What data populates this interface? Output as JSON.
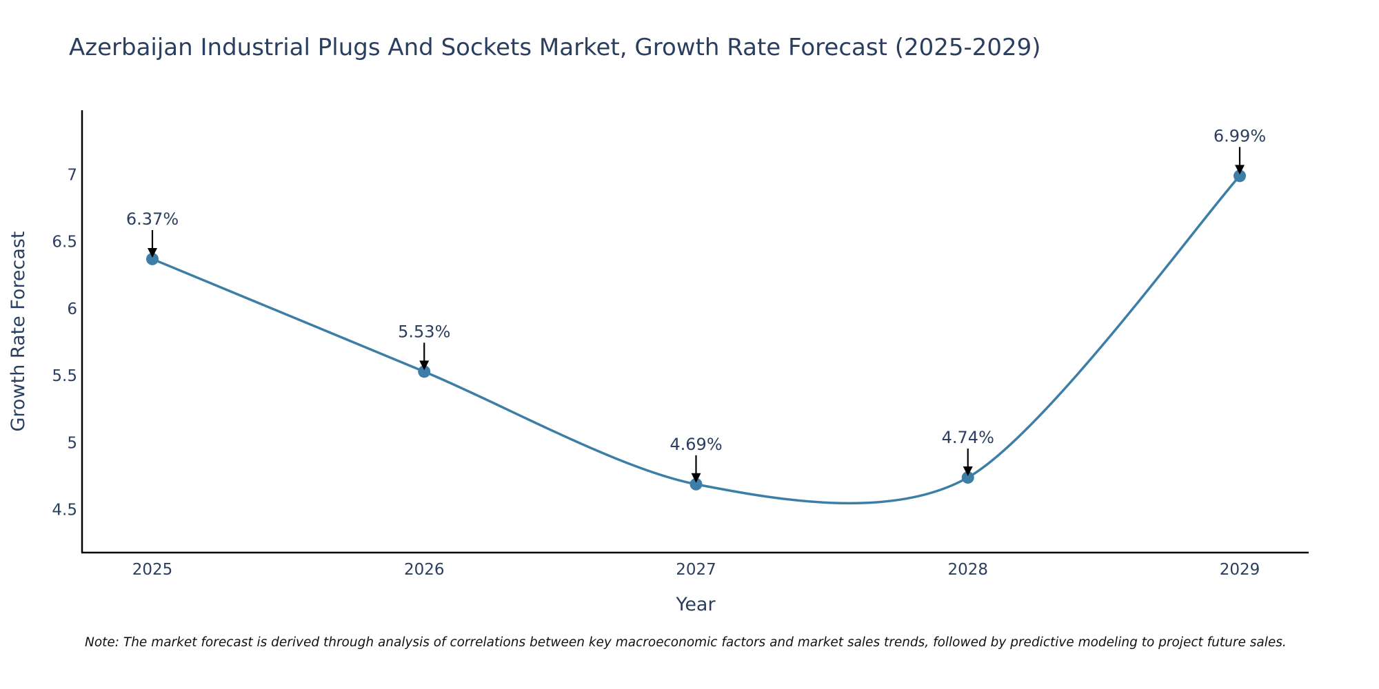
{
  "chart_data": {
    "type": "line",
    "title": "Azerbaijan Industrial Plugs And Sockets Market, Growth Rate Forecast (2025-2029)",
    "xlabel": "Year",
    "ylabel": "Growth Rate Forecast",
    "categories": [
      "2025",
      "2026",
      "2027",
      "2028",
      "2029"
    ],
    "series": [
      {
        "name": "Growth Rate Forecast",
        "values": [
          6.37,
          5.53,
          4.69,
          4.74,
          6.99
        ],
        "labels": [
          "6.37%",
          "5.53%",
          "4.69%",
          "4.74%",
          "6.99%"
        ]
      }
    ],
    "y_ticks": [
      4.5,
      5,
      5.5,
      6,
      6.5,
      7
    ],
    "y_tick_labels": [
      "4.5",
      "5",
      "5.5",
      "6",
      "6.5",
      "7"
    ],
    "ylim": [
      4.18,
      7.48
    ],
    "grid": false,
    "line_color": "#3d7ea6",
    "note": "Note: The market forecast is derived through analysis of correlations between key macroeconomic factors and market sales trends, followed by predictive modeling to project future sales."
  }
}
